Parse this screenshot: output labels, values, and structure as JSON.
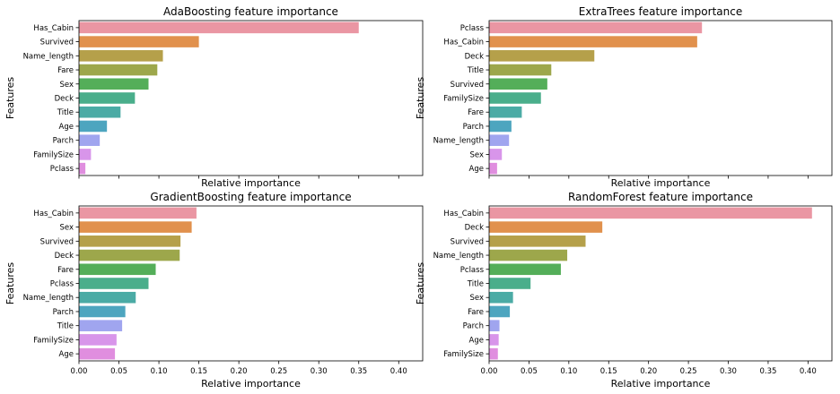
{
  "chart_data": [
    {
      "type": "bar",
      "orientation": "horizontal",
      "title": "AdaBoosting feature importance",
      "xlabel": "Relative importance",
      "ylabel": "Features",
      "xlim": [
        0,
        0.43
      ],
      "show_xticklabels": false,
      "categories": [
        "Has_Cabin",
        "Survived",
        "Name_length",
        "Fare",
        "Sex",
        "Deck",
        "Title",
        "Age",
        "Parch",
        "FamilySize",
        "Pclass"
      ],
      "values": [
        0.35,
        0.15,
        0.105,
        0.098,
        0.087,
        0.07,
        0.052,
        0.035,
        0.026,
        0.015,
        0.008
      ]
    },
    {
      "type": "bar",
      "orientation": "horizontal",
      "title": "ExtraTrees feature importance",
      "xlabel": "Relative importance",
      "ylabel": "Features",
      "xlim": [
        0,
        0.43
      ],
      "show_xticklabels": false,
      "categories": [
        "Pclass",
        "Has_Cabin",
        "Deck",
        "Title",
        "Survived",
        "FamilySize",
        "Fare",
        "Parch",
        "Name_length",
        "Sex",
        "Age"
      ],
      "values": [
        0.267,
        0.261,
        0.132,
        0.078,
        0.073,
        0.065,
        0.041,
        0.028,
        0.025,
        0.016,
        0.01
      ]
    },
    {
      "type": "bar",
      "orientation": "horizontal",
      "title": "GradientBoosting feature importance",
      "xlabel": "Relative importance",
      "ylabel": "Features",
      "xlim": [
        0,
        0.43
      ],
      "show_xticklabels": true,
      "xticks": [
        "0.00",
        "0.05",
        "0.10",
        "0.15",
        "0.20",
        "0.25",
        "0.30",
        "0.35",
        "0.40"
      ],
      "categories": [
        "Has_Cabin",
        "Sex",
        "Survived",
        "Deck",
        "Fare",
        "Pclass",
        "Name_length",
        "Parch",
        "Title",
        "FamilySize",
        "Age"
      ],
      "values": [
        0.147,
        0.141,
        0.127,
        0.126,
        0.096,
        0.087,
        0.071,
        0.058,
        0.054,
        0.047,
        0.045
      ]
    },
    {
      "type": "bar",
      "orientation": "horizontal",
      "title": "RandomForest feature importance",
      "xlabel": "Relative importance",
      "ylabel": "Features",
      "xlim": [
        0,
        0.43
      ],
      "show_xticklabels": true,
      "xticks": [
        "0.00",
        "0.05",
        "0.10",
        "0.15",
        "0.20",
        "0.25",
        "0.30",
        "0.35",
        "0.40"
      ],
      "categories": [
        "Has_Cabin",
        "Deck",
        "Survived",
        "Name_length",
        "Pclass",
        "Title",
        "Sex",
        "Fare",
        "Parch",
        "Age",
        "FamilySize"
      ],
      "values": [
        0.405,
        0.142,
        0.121,
        0.098,
        0.09,
        0.052,
        0.03,
        0.026,
        0.013,
        0.012,
        0.011
      ]
    }
  ],
  "colors": [
    "#ea96a3",
    "#e1914d",
    "#b5a04a",
    "#9da74b",
    "#54ae59",
    "#4aae8b",
    "#4baba5",
    "#4da5bf",
    "#a0a5ef",
    "#d895ea",
    "#e08edf"
  ]
}
